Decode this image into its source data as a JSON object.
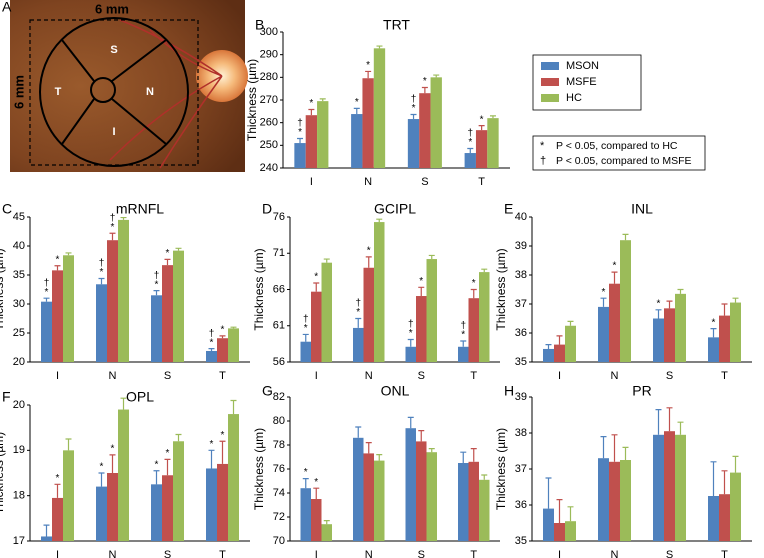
{
  "panel_a": {
    "letter": "A",
    "width_label": "6 mm",
    "height_label": "6 mm",
    "sectors": [
      "S",
      "T",
      "N",
      "I"
    ]
  },
  "legend": {
    "notes": [
      {
        "symbol": "*",
        "text": "P < 0.05, compared to HC"
      },
      {
        "symbol": "†",
        "text": "P < 0.05, compared to MSFE"
      }
    ]
  },
  "chart_data": [
    {
      "type": "bar",
      "panel": "B",
      "title": "TRT",
      "ylabel": "Thickness (µm)",
      "categories": [
        "I",
        "N",
        "S",
        "T"
      ],
      "ylim": [
        240,
        300
      ],
      "yticks": [
        240,
        250,
        260,
        270,
        280,
        290,
        300
      ],
      "series": [
        {
          "name": "MSON",
          "color": "#4f81bd",
          "values": [
            251,
            263.8,
            261.6,
            246.6
          ],
          "errors": [
            2,
            2.5,
            2,
            2
          ],
          "symbols": [
            [
              "†",
              "*"
            ],
            [
              "*"
            ],
            [
              "†",
              "*"
            ],
            [
              "†",
              "*"
            ]
          ]
        },
        {
          "name": "MSFE",
          "color": "#c0504d",
          "values": [
            263.3,
            279.6,
            273,
            256.7
          ],
          "errors": [
            2.5,
            3,
            2.5,
            2
          ],
          "symbols": [
            [
              "*"
            ],
            [
              "*"
            ],
            [
              "*"
            ],
            [
              "*"
            ]
          ]
        },
        {
          "name": "HC",
          "color": "#9bbb59",
          "values": [
            269.5,
            292.8,
            280,
            262
          ],
          "errors": [
            1,
            1,
            1,
            1
          ]
        }
      ]
    },
    {
      "type": "bar",
      "panel": "C",
      "title": "mRNFL",
      "ylabel": "Thickness (µm)",
      "categories": [
        "I",
        "N",
        "S",
        "T"
      ],
      "ylim": [
        20,
        45
      ],
      "yticks": [
        20,
        25,
        30,
        35,
        40,
        45
      ],
      "series": [
        {
          "name": "MSON",
          "color": "#4f81bd",
          "values": [
            30.4,
            33.4,
            31.5,
            21.9
          ],
          "errors": [
            0.6,
            1,
            0.8,
            0.4
          ],
          "symbols": [
            [
              "†",
              "*"
            ],
            [
              "†",
              "*"
            ],
            [
              "†",
              "*"
            ],
            [
              "†",
              "*"
            ]
          ]
        },
        {
          "name": "MSFE",
          "color": "#c0504d",
          "values": [
            35.8,
            41,
            36.7,
            24.1
          ],
          "errors": [
            0.8,
            1.2,
            1,
            0.4
          ],
          "symbols": [
            [
              "*"
            ],
            [
              "†",
              "*"
            ],
            [
              "*"
            ],
            [
              "*"
            ]
          ]
        },
        {
          "name": "HC",
          "color": "#9bbb59",
          "values": [
            38.4,
            44.5,
            39.2,
            25.8
          ],
          "errors": [
            0.4,
            0.4,
            0.4,
            0.2
          ]
        }
      ]
    },
    {
      "type": "bar",
      "panel": "D",
      "title": "GCIPL",
      "ylabel": "Thickness (µm)",
      "categories": [
        "I",
        "N",
        "S",
        "T"
      ],
      "ylim": [
        56,
        76
      ],
      "yticks": [
        56,
        61,
        66,
        71,
        76
      ],
      "series": [
        {
          "name": "MSON",
          "color": "#4f81bd",
          "values": [
            58.8,
            60.7,
            58.1,
            58.1
          ],
          "errors": [
            1,
            1.3,
            1,
            0.8
          ],
          "symbols": [
            [
              "†",
              "*"
            ],
            [
              "†",
              "*"
            ],
            [
              "†",
              "*"
            ],
            [
              "†",
              "*"
            ]
          ]
        },
        {
          "name": "MSFE",
          "color": "#c0504d",
          "values": [
            65.7,
            69,
            65.1,
            64.8
          ],
          "errors": [
            1.2,
            1.5,
            1.2,
            1.2
          ],
          "symbols": [
            [
              "*"
            ],
            [
              "*"
            ],
            [
              "*"
            ],
            [
              "*"
            ]
          ]
        },
        {
          "name": "HC",
          "color": "#9bbb59",
          "values": [
            69.7,
            75.3,
            70.2,
            68.4
          ],
          "errors": [
            0.5,
            0.4,
            0.5,
            0.4
          ]
        }
      ]
    },
    {
      "type": "bar",
      "panel": "E",
      "title": "INL",
      "ylabel": "Thickness (µm)",
      "categories": [
        "I",
        "N",
        "S",
        "T"
      ],
      "ylim": [
        35,
        40
      ],
      "yticks": [
        35,
        36,
        37,
        38,
        39,
        40
      ],
      "series": [
        {
          "name": "MSON",
          "color": "#4f81bd",
          "values": [
            35.45,
            36.9,
            36.5,
            35.85
          ],
          "errors": [
            0.15,
            0.3,
            0.3,
            0.3
          ],
          "symbols": [
            null,
            [
              "*"
            ],
            [
              "*"
            ],
            [
              "*"
            ]
          ]
        },
        {
          "name": "MSFE",
          "color": "#c0504d",
          "values": [
            35.6,
            37.7,
            36.85,
            36.6
          ],
          "errors": [
            0.3,
            0.4,
            0.25,
            0.4
          ],
          "symbols": [
            null,
            [
              "*"
            ],
            null,
            null
          ]
        },
        {
          "name": "HC",
          "color": "#9bbb59",
          "values": [
            36.25,
            39.2,
            37.35,
            37.05
          ],
          "errors": [
            0.15,
            0.2,
            0.15,
            0.15
          ]
        }
      ]
    },
    {
      "type": "bar",
      "panel": "F",
      "title": "OPL",
      "ylabel": "Thickness (µm)",
      "categories": [
        "I",
        "N",
        "S",
        "T"
      ],
      "ylim": [
        17,
        20
      ],
      "yticks": [
        17,
        18,
        19,
        20
      ],
      "series": [
        {
          "name": "MSON",
          "color": "#4f81bd",
          "values": [
            17.1,
            18.2,
            18.25,
            18.6
          ],
          "errors": [
            0.25,
            0.3,
            0.3,
            0.4
          ],
          "symbols": [
            null,
            [
              "*"
            ],
            [
              "*"
            ],
            [
              "*"
            ]
          ]
        },
        {
          "name": "MSFE",
          "color": "#c0504d",
          "values": [
            17.95,
            18.5,
            18.45,
            18.7
          ],
          "errors": [
            0.3,
            0.4,
            0.35,
            0.5
          ],
          "symbols": [
            [
              "*"
            ],
            [
              "*"
            ],
            [
              "*"
            ],
            [
              "*"
            ]
          ]
        },
        {
          "name": "HC",
          "color": "#9bbb59",
          "values": [
            19,
            19.9,
            19.2,
            19.8
          ],
          "errors": [
            0.25,
            0.25,
            0.15,
            0.3
          ]
        }
      ]
    },
    {
      "type": "bar",
      "panel": "G",
      "title": "ONL",
      "ylabel": "Thickness (µm)",
      "categories": [
        "I",
        "N",
        "S",
        "T"
      ],
      "ylim": [
        70,
        82
      ],
      "yticks": [
        70,
        72,
        74,
        76,
        78,
        80,
        82
      ],
      "series": [
        {
          "name": "MSON",
          "color": "#4f81bd",
          "values": [
            74.4,
            78.6,
            79.4,
            76.5
          ],
          "errors": [
            0.8,
            0.9,
            0.9,
            0.9
          ],
          "symbols": [
            [
              "*"
            ],
            null,
            null,
            null
          ]
        },
        {
          "name": "MSFE",
          "color": "#c0504d",
          "values": [
            73.5,
            77.3,
            78.3,
            76.6
          ],
          "errors": [
            0.9,
            0.9,
            0.9,
            1.1
          ],
          "symbols": [
            [
              "*"
            ],
            null,
            null,
            null
          ]
        },
        {
          "name": "HC",
          "color": "#9bbb59",
          "values": [
            71.4,
            76.7,
            77.4,
            75.1
          ],
          "errors": [
            0.3,
            0.5,
            0.3,
            0.4
          ]
        }
      ]
    },
    {
      "type": "bar",
      "panel": "H",
      "title": "PR",
      "ylabel": "Thickness (µm)",
      "categories": [
        "I",
        "N",
        "S",
        "T"
      ],
      "ylim": [
        35,
        39
      ],
      "yticks": [
        35,
        36,
        37,
        38,
        39
      ],
      "series": [
        {
          "name": "MSON",
          "color": "#4f81bd",
          "values": [
            35.9,
            37.3,
            37.95,
            36.25
          ],
          "errors": [
            0.85,
            0.6,
            0.7,
            0.95
          ]
        },
        {
          "name": "MSFE",
          "color": "#c0504d",
          "values": [
            35.5,
            37.2,
            38.05,
            36.3
          ],
          "errors": [
            0.65,
            0.75,
            0.65,
            0.65
          ]
        },
        {
          "name": "HC",
          "color": "#9bbb59",
          "values": [
            35.55,
            37.25,
            37.95,
            36.9
          ],
          "errors": [
            0.4,
            0.35,
            0.35,
            0.45
          ]
        }
      ]
    }
  ]
}
